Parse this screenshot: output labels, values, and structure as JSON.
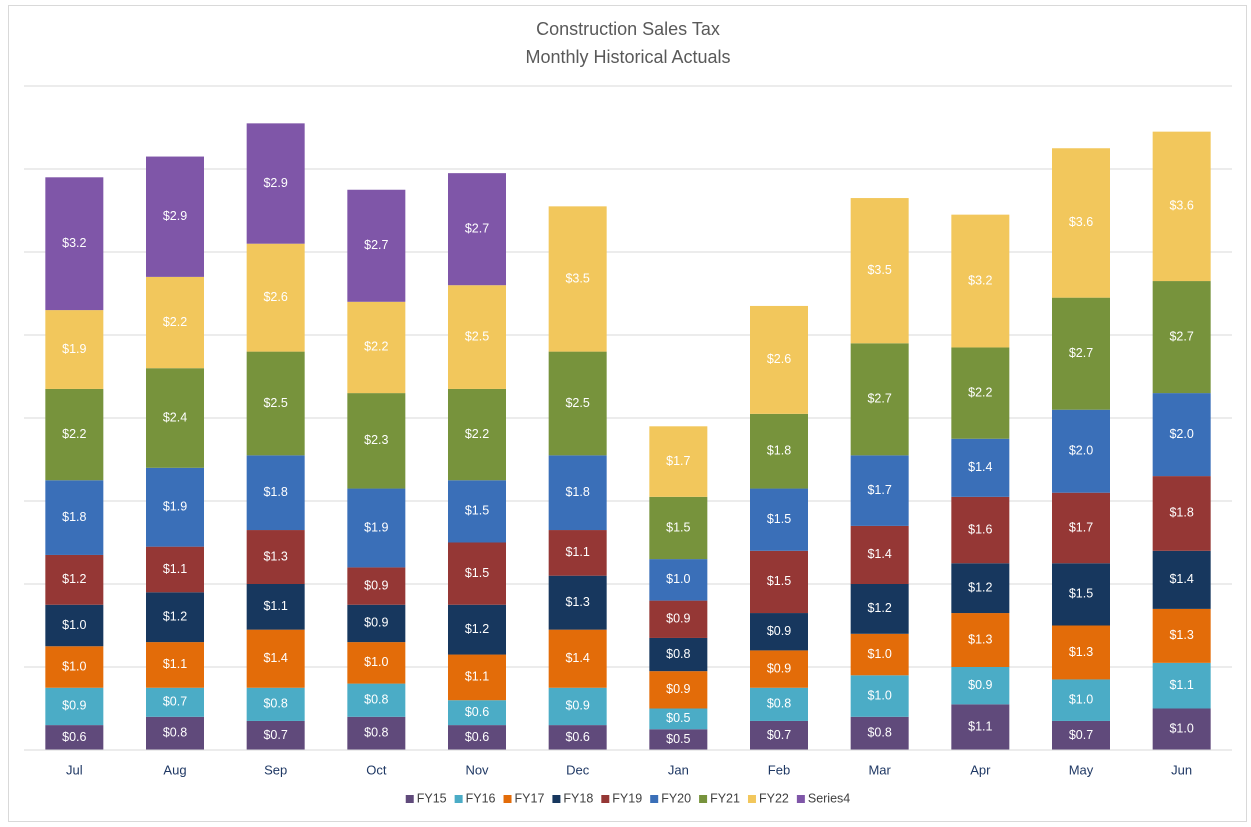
{
  "chart_data": {
    "type": "stacked_bar",
    "title": "Construction Sales Tax",
    "subtitle": "Monthly Historical Actuals",
    "categories": [
      "Jul",
      "Aug",
      "Sep",
      "Oct",
      "Nov",
      "Dec",
      "Jan",
      "Feb",
      "Mar",
      "Apr",
      "May",
      "Jun"
    ],
    "ylim": [
      0,
      16
    ],
    "yticks": [
      0,
      2,
      4,
      6,
      8,
      10,
      12,
      14,
      16
    ],
    "grid": true,
    "legend": "bottom",
    "series": [
      {
        "name": "FY15",
        "color": "#604a7b",
        "values": [
          0.6,
          0.8,
          0.7,
          0.8,
          0.6,
          0.6,
          0.5,
          0.7,
          0.8,
          1.1,
          0.7,
          1.0
        ],
        "value_labels": [
          "$0.6",
          "$0.8",
          "$0.7",
          "$0.8",
          "$0.6",
          "$0.6",
          "$0.5",
          "$0.7",
          "$0.8",
          "$1.1",
          "$0.7",
          "$1.0"
        ]
      },
      {
        "name": "FY16",
        "color": "#4bacc6",
        "values": [
          0.9,
          0.7,
          0.8,
          0.8,
          0.6,
          0.9,
          0.5,
          0.8,
          1.0,
          0.9,
          1.0,
          1.1
        ],
        "value_labels": [
          "$0.9",
          "$0.7",
          "$0.8",
          "$0.8",
          "$0.6",
          "$0.9",
          "$0.5",
          "$0.8",
          "$1.0",
          "$0.9",
          "$1.0",
          "$1.1"
        ]
      },
      {
        "name": "FY17",
        "color": "#e36c09",
        "values": [
          1.0,
          1.1,
          1.4,
          1.0,
          1.1,
          1.4,
          0.9,
          0.9,
          1.0,
          1.3,
          1.3,
          1.3
        ],
        "value_labels": [
          "$1.0",
          "$1.1",
          "$1.4",
          "$1.0",
          "$1.1",
          "$1.4",
          "$0.9",
          "$0.9",
          "$1.0",
          "$1.3",
          "$1.3",
          "$1.3"
        ]
      },
      {
        "name": "FY18",
        "color": "#17375e",
        "values": [
          1.0,
          1.2,
          1.1,
          0.9,
          1.2,
          1.3,
          0.8,
          0.9,
          1.2,
          1.2,
          1.5,
          1.4
        ],
        "value_labels": [
          "$1.0",
          "$1.2",
          "$1.1",
          "$0.9",
          "$1.2",
          "$1.3",
          "$0.8",
          "$0.9",
          "$1.2",
          "$1.2",
          "$1.5",
          "$1.4"
        ]
      },
      {
        "name": "FY19",
        "color": "#953735",
        "values": [
          1.2,
          1.1,
          1.3,
          0.9,
          1.5,
          1.1,
          0.9,
          1.5,
          1.4,
          1.6,
          1.7,
          1.8
        ],
        "value_labels": [
          "$1.2",
          "$1.1",
          "$1.3",
          "$0.9",
          "$1.5",
          "$1.1",
          "$0.9",
          "$1.5",
          "$1.4",
          "$1.6",
          "$1.7",
          "$1.8"
        ]
      },
      {
        "name": "FY20",
        "color": "#3a6fb8",
        "values": [
          1.8,
          1.9,
          1.8,
          1.9,
          1.5,
          1.8,
          1.0,
          1.5,
          1.7,
          1.4,
          2.0,
          2.0
        ],
        "value_labels": [
          "$1.8",
          "$1.9",
          "$1.8",
          "$1.9",
          "$1.5",
          "$1.8",
          "$1.0",
          "$1.5",
          "$1.7",
          "$1.4",
          "$2.0",
          "$2.0"
        ]
      },
      {
        "name": "FY21",
        "color": "#77933c",
        "values": [
          2.2,
          2.4,
          2.5,
          2.3,
          2.2,
          2.5,
          1.5,
          1.8,
          2.7,
          2.2,
          2.7,
          2.7
        ],
        "value_labels": [
          "$2.2",
          "$2.4",
          "$2.5",
          "$2.3",
          "$2.2",
          "$2.5",
          "$1.5",
          "$1.8",
          "$2.7",
          "$2.2",
          "$2.7",
          "$2.7"
        ]
      },
      {
        "name": "FY22",
        "color": "#f2c75c",
        "values": [
          1.9,
          2.2,
          2.6,
          2.2,
          2.5,
          3.5,
          1.7,
          2.6,
          3.5,
          3.2,
          3.6,
          3.6
        ],
        "value_labels": [
          "$1.9",
          "$2.2",
          "$2.6",
          "$2.2",
          "$2.5",
          "$3.5",
          "$1.7",
          "$2.6",
          "$3.5",
          "$3.2",
          "$3.6",
          "$3.6"
        ]
      },
      {
        "name": "Series4",
        "color": "#7f56a8",
        "values": [
          3.2,
          2.9,
          2.9,
          2.7,
          2.7,
          null,
          null,
          null,
          null,
          null,
          null,
          null
        ],
        "value_labels": [
          "$3.2",
          "$2.9",
          "$2.9",
          "$2.7",
          "$2.7",
          null,
          null,
          null,
          null,
          null,
          null,
          null
        ]
      }
    ]
  }
}
